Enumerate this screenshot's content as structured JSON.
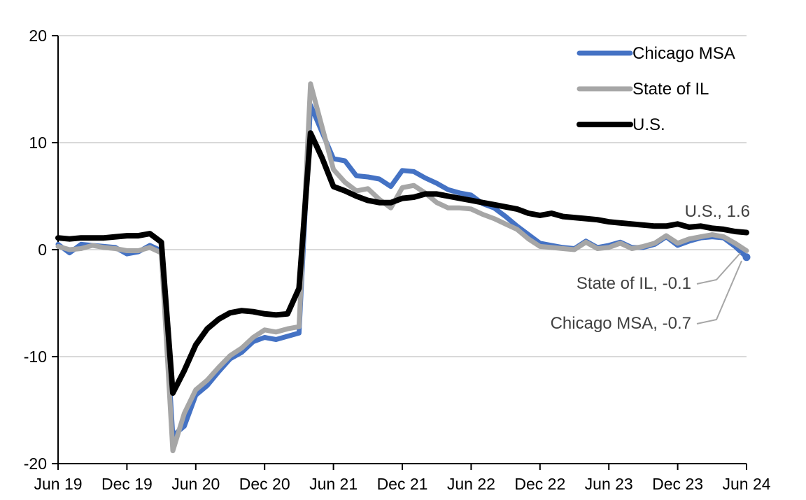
{
  "chart_data": {
    "type": "line",
    "title": "",
    "xlabel": "",
    "ylabel": "",
    "x_start": "Jun 2019",
    "x_end": "Jun 2024",
    "frequency": "monthly",
    "n_points": 61,
    "x_tick_labels": [
      "Jun 19",
      "Dec 19",
      "Jun 20",
      "Dec 20",
      "Jun 21",
      "Dec 21",
      "Jun 22",
      "Dec 22",
      "Jun 23",
      "Dec 23",
      "Jun 24"
    ],
    "y_ticks": [
      20,
      10,
      0,
      -10,
      -20
    ],
    "ylim": [
      -20,
      20
    ],
    "gridline_values": [
      20,
      10,
      0,
      -10
    ],
    "grid": "on",
    "legend_position": "top-right",
    "series": [
      {
        "name": "Chicago MSA",
        "color": "#4472C4",
        "last_value": -0.7,
        "end_marker": true,
        "values": [
          0.5,
          -0.3,
          0.5,
          0.4,
          0.3,
          0.2,
          -0.4,
          -0.2,
          0.4,
          -0.1,
          -17.4,
          -16.5,
          -13.6,
          -12.7,
          -11.4,
          -10.2,
          -9.6,
          -8.6,
          -8.2,
          -8.4,
          -8.1,
          -7.8,
          13.5,
          11.0,
          8.5,
          8.3,
          6.9,
          6.8,
          6.6,
          5.9,
          7.4,
          7.3,
          6.7,
          6.2,
          5.6,
          5.3,
          5.1,
          4.3,
          3.9,
          3.1,
          2.2,
          1.4,
          0.6,
          0.4,
          0.2,
          0.1,
          0.8,
          0.2,
          0.4,
          0.7,
          0.2,
          0.2,
          0.5,
          1.2,
          0.4,
          0.8,
          1.1,
          1.2,
          1.1,
          0.3,
          -0.7
        ]
      },
      {
        "name": "State of IL",
        "color": "#A6A6A6",
        "last_value": -0.1,
        "end_marker": false,
        "values": [
          0.3,
          0.0,
          0.1,
          0.4,
          0.2,
          0.1,
          -0.1,
          -0.1,
          0.2,
          -0.3,
          -18.8,
          -15.3,
          -13.1,
          -12.2,
          -11.0,
          -9.9,
          -9.2,
          -8.2,
          -7.5,
          -7.7,
          -7.4,
          -7.2,
          15.5,
          11.5,
          7.5,
          6.3,
          5.5,
          5.7,
          4.7,
          3.9,
          5.8,
          6.0,
          5.3,
          4.4,
          3.9,
          3.9,
          3.8,
          3.3,
          2.9,
          2.4,
          1.9,
          1.0,
          0.3,
          0.2,
          0.1,
          0.0,
          0.7,
          0.1,
          0.2,
          0.6,
          0.1,
          0.3,
          0.6,
          1.3,
          0.6,
          1.0,
          1.2,
          1.4,
          1.2,
          0.6,
          -0.1
        ]
      },
      {
        "name": "U.S.",
        "color": "#000000",
        "last_value": 1.6,
        "end_marker": false,
        "values": [
          1.1,
          1.0,
          1.1,
          1.1,
          1.1,
          1.2,
          1.3,
          1.3,
          1.5,
          0.7,
          -13.4,
          -11.3,
          -8.9,
          -7.4,
          -6.5,
          -5.9,
          -5.7,
          -5.8,
          -6.0,
          -6.1,
          -6.0,
          -3.6,
          10.9,
          8.6,
          5.9,
          5.5,
          5.0,
          4.6,
          4.4,
          4.4,
          4.8,
          4.9,
          5.2,
          5.2,
          5.0,
          4.8,
          4.6,
          4.4,
          4.2,
          4.0,
          3.8,
          3.4,
          3.2,
          3.4,
          3.1,
          3.0,
          2.9,
          2.8,
          2.6,
          2.5,
          2.4,
          2.3,
          2.2,
          2.2,
          2.4,
          2.1,
          2.2,
          2.0,
          1.9,
          1.7,
          1.6
        ]
      }
    ],
    "legend": [
      {
        "label": "Chicago MSA",
        "color": "#4472C4"
      },
      {
        "label": "State of IL",
        "color": "#A6A6A6"
      },
      {
        "label": "U.S.",
        "color": "#000000"
      }
    ],
    "annotations": [
      {
        "text": "U.S., 1.6",
        "series": "U.S.",
        "leader": false
      },
      {
        "text": "State of IL, -0.1",
        "series": "State of IL",
        "leader": true
      },
      {
        "text": "Chicago MSA, -0.7",
        "series": "Chicago MSA",
        "leader": true
      }
    ],
    "colors": {
      "grid": "#D9D9D9",
      "axis": "#000000",
      "tick_label": "#000000",
      "legend_text": "#000000",
      "annotation_text": "#404040",
      "leader_line": "#A6A6A6",
      "background": "#FFFFFF"
    }
  }
}
